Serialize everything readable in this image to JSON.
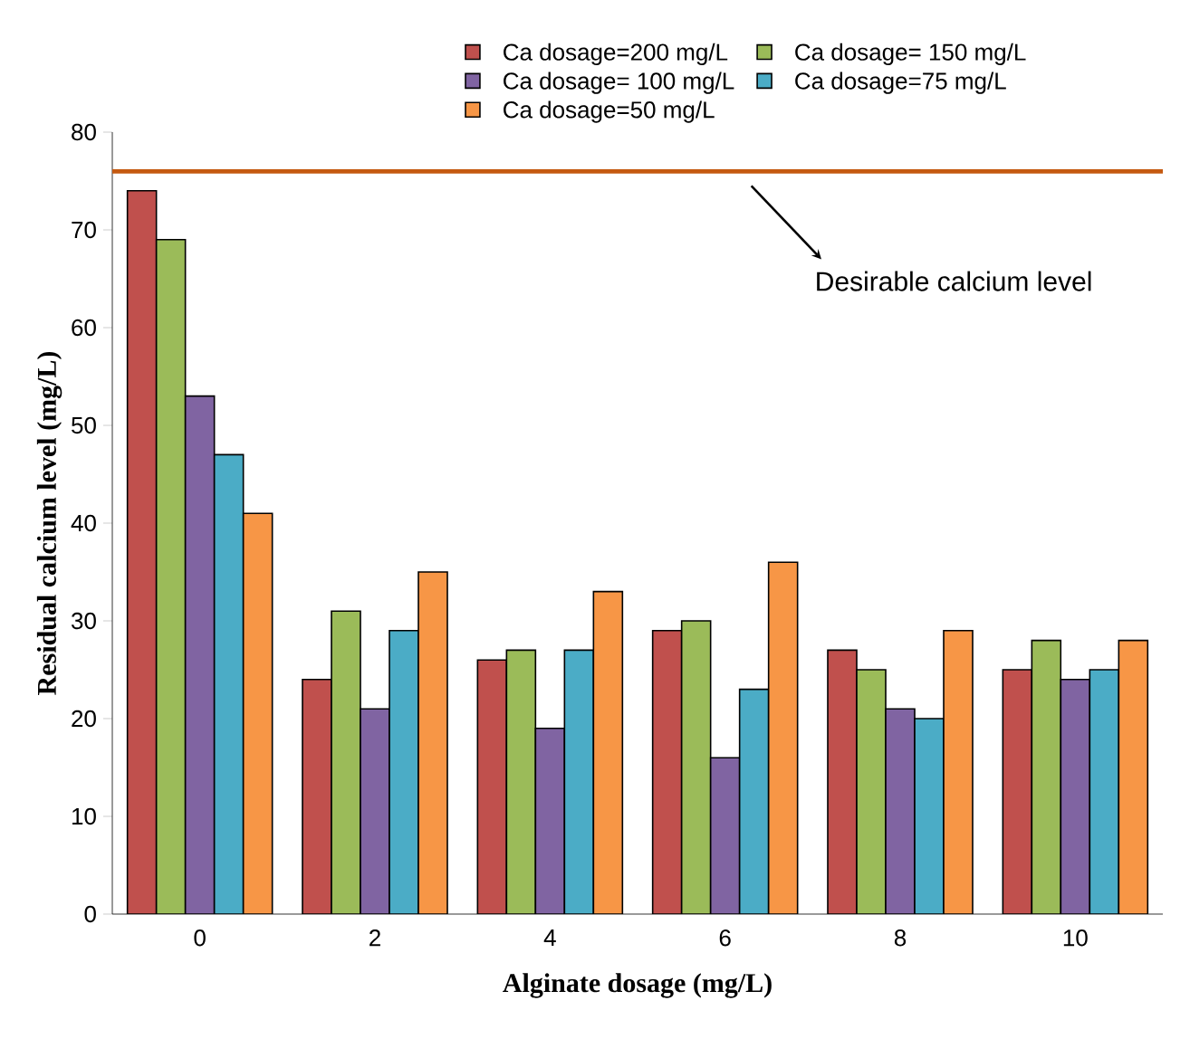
{
  "chart_data": {
    "type": "bar",
    "xlabel": "Alginate dosage (mg/L)",
    "ylabel": "Residual calcium level (mg/L)",
    "categories": [
      "0",
      "2",
      "4",
      "6",
      "8",
      "10"
    ],
    "series": [
      {
        "name": "Ca dosage=200 mg/L",
        "color": "#c0504d",
        "values": [
          74,
          24,
          26,
          29,
          27,
          25
        ]
      },
      {
        "name": "Ca dosage= 150 mg/L",
        "color": "#9bbb59",
        "values": [
          69,
          31,
          27,
          30,
          25,
          28
        ]
      },
      {
        "name": "Ca dosage= 100 mg/L",
        "color": "#8064a2",
        "values": [
          53,
          21,
          19,
          16,
          21,
          24
        ]
      },
      {
        "name": "Ca dosage=75 mg/L",
        "color": "#4bacc6",
        "values": [
          47,
          29,
          27,
          23,
          20,
          25
        ]
      },
      {
        "name": "Ca dosage=50 mg/L",
        "color": "#f79646",
        "values": [
          41,
          35,
          33,
          36,
          29,
          28
        ]
      }
    ],
    "ylim": [
      0,
      80
    ],
    "yticks": [
      0,
      10,
      20,
      30,
      40,
      50,
      60,
      70,
      80
    ],
    "ref_lines": [
      {
        "axis": "y",
        "value": 76,
        "label": "Desirable calcium level",
        "color": "#c55a11"
      }
    ],
    "legend": "top"
  }
}
